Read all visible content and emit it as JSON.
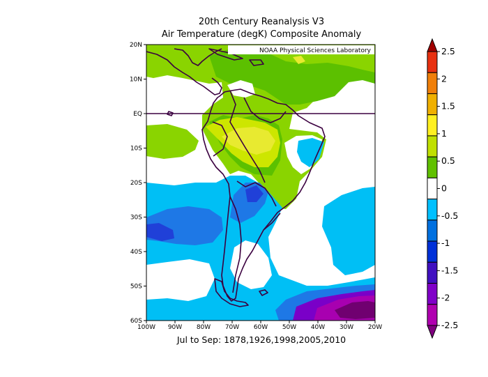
{
  "title_line1": "20th Century Reanalysis V3",
  "title_line2": "Air Temperature (degK) Composite Anomaly",
  "credit": "NOAA Physical Sciences Laboratory",
  "caption": "Jul to Sep: 1878,1926,1998,2005,2010",
  "map": {
    "lon_range": [
      -100,
      -20
    ],
    "lat_range": [
      -60,
      20
    ],
    "lon_ticks": [
      "100W",
      "90W",
      "80W",
      "70W",
      "60W",
      "50W",
      "40W",
      "30W",
      "20W"
    ],
    "lat_ticks": [
      "20N",
      "10N",
      "EQ",
      "10S",
      "20S",
      "30S",
      "40S",
      "50S",
      "60S"
    ],
    "equator_line": true
  },
  "colorbar": {
    "labels": [
      "2.5",
      "2",
      "1.5",
      "1",
      "0.5",
      "0",
      "-0.5",
      "-1",
      "-1.5",
      "-2",
      "-2.5"
    ],
    "colors": [
      "#a00000",
      "#e83010",
      "#f07f0a",
      "#f0b000",
      "#fff020",
      "#c0e000",
      "#60c000",
      "#ffffff",
      "#00c0ff",
      "#0070e0",
      "#0030d8",
      "#4010c0",
      "#8000c8",
      "#b000b0",
      "#800080"
    ]
  },
  "colors": {
    "green_light": "#8ad400",
    "green": "#5cc000",
    "yellow_green": "#cde600",
    "yellow": "#e8ea30",
    "cyan": "#00bff5",
    "cyan_light": "#33ccff",
    "blue": "#1e78e6",
    "blue_dark": "#2040d8",
    "violet": "#7a00c8",
    "purple": "#a800b0",
    "purple_dark": "#700070",
    "coast": "#3b0040"
  }
}
